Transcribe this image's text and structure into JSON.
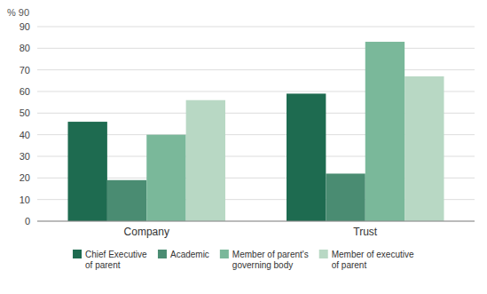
{
  "chart_data": {
    "type": "bar",
    "y_label": "% 90",
    "categories": [
      "Company",
      "Trust"
    ],
    "series": [
      {
        "name": "Chief Executive\nof parent",
        "color": "#1e6b50",
        "values": [
          46,
          59
        ]
      },
      {
        "name": "Academic",
        "color": "#4a8c72",
        "values": [
          19,
          22
        ]
      },
      {
        "name": "Member of parent's\ngoverning body",
        "color": "#7ab89a",
        "values": [
          40,
          83
        ]
      },
      {
        "name": "Member of executive\nof parent",
        "color": "#b8d8c4",
        "values": [
          56,
          67
        ]
      }
    ],
    "ylim": [
      0,
      90
    ],
    "yticks": [
      0,
      10,
      20,
      30,
      40,
      50,
      60,
      70,
      80,
      90
    ],
    "grid": true,
    "legend": "bottom"
  }
}
